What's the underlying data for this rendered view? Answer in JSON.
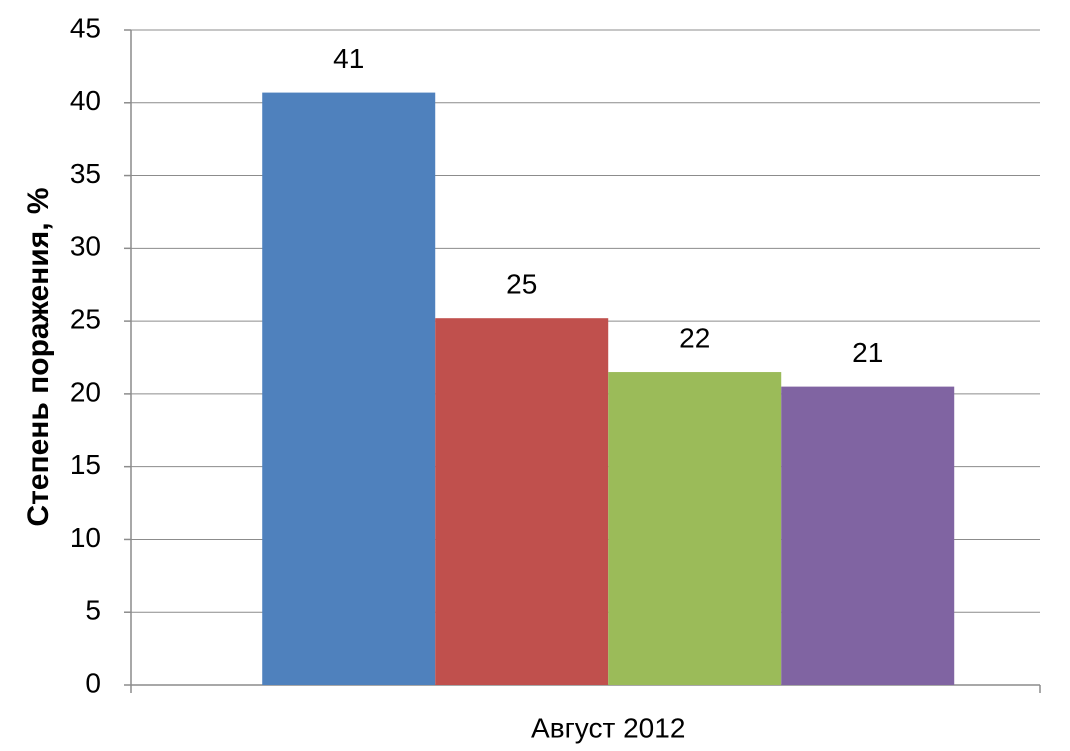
{
  "chart_data": {
    "type": "bar",
    "y_label": "Степень поражения,  %",
    "categories": [
      "Август 2012"
    ],
    "series": [
      {
        "color": "#4f81bd",
        "values": [
          40.7
        ],
        "value_labels": [
          "41"
        ]
      },
      {
        "color": "#c0504d",
        "values": [
          25.2
        ],
        "value_labels": [
          "25"
        ]
      },
      {
        "color": "#9bbb59",
        "values": [
          21.5
        ],
        "value_labels": [
          "22"
        ]
      },
      {
        "color": "#8064a2",
        "values": [
          20.5
        ],
        "value_labels": [
          "21"
        ]
      }
    ],
    "ylim": [
      0,
      45
    ],
    "yticks": [
      0,
      5,
      10,
      15,
      20,
      25,
      30,
      35,
      40,
      45
    ],
    "grid": true
  }
}
